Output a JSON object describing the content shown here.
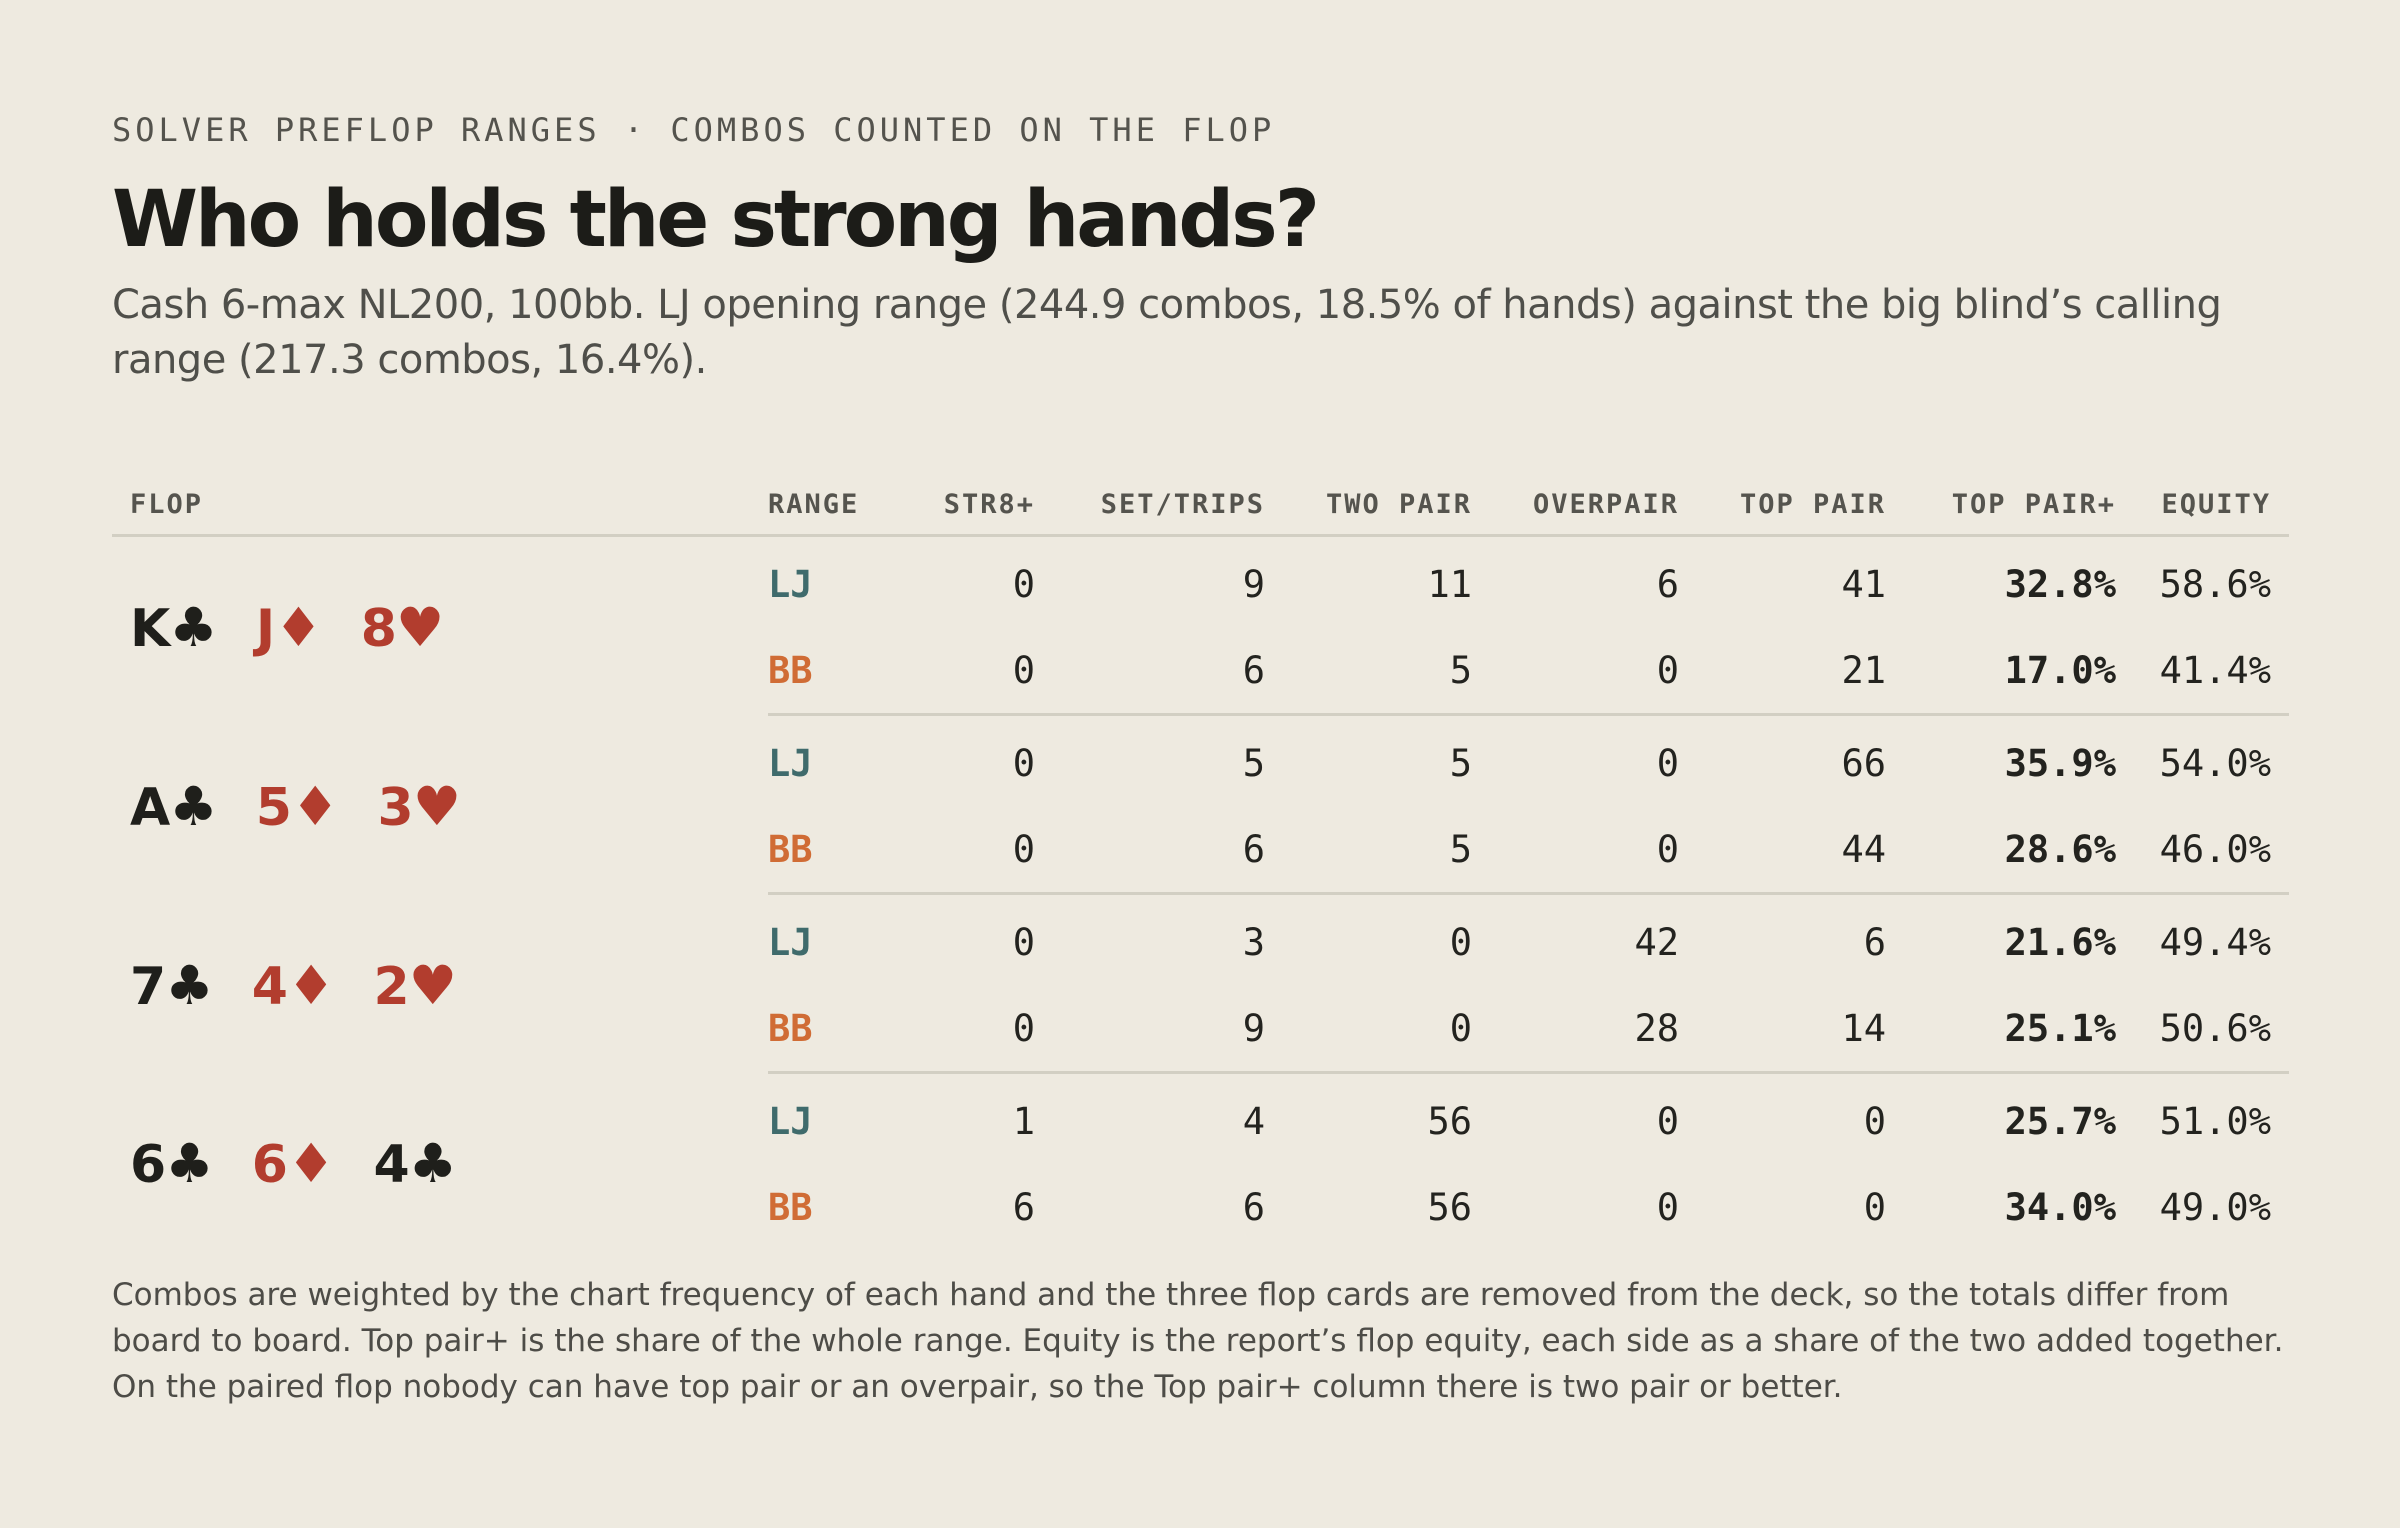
{
  "header": {
    "kicker": "SOLVER PREFLOP RANGES · COMBOS COUNTED ON THE FLOP",
    "title": "Who holds the strong hands?",
    "subtitle": "Cash 6-max NL200, 100bb. LJ opening range (244.9 combos, 18.5% of hands) against the big blind’s calling range (217.3 combos, 16.4%)."
  },
  "table": {
    "columns": [
      "FLOP",
      "RANGE",
      "STR8+",
      "SET/TRIPS",
      "TWO PAIR",
      "OVERPAIR",
      "TOP PAIR",
      "TOP PAIR+",
      "EQUITY"
    ],
    "flops": [
      {
        "cards": [
          {
            "rank": "K",
            "suit": "♣",
            "color": "black"
          },
          {
            "rank": "J",
            "suit": "♦",
            "color": "red"
          },
          {
            "rank": "8",
            "suit": "♥",
            "color": "red"
          }
        ],
        "rows": [
          {
            "range": "LJ",
            "str8": "0",
            "set": "9",
            "two_pair": "11",
            "overpair": "6",
            "top_pair": "41",
            "top_pair_plus": "32.8%",
            "equity": "58.6%"
          },
          {
            "range": "BB",
            "str8": "0",
            "set": "6",
            "two_pair": "5",
            "overpair": "0",
            "top_pair": "21",
            "top_pair_plus": "17.0%",
            "equity": "41.4%"
          }
        ]
      },
      {
        "cards": [
          {
            "rank": "A",
            "suit": "♣",
            "color": "black"
          },
          {
            "rank": "5",
            "suit": "♦",
            "color": "red"
          },
          {
            "rank": "3",
            "suit": "♥",
            "color": "red"
          }
        ],
        "rows": [
          {
            "range": "LJ",
            "str8": "0",
            "set": "5",
            "two_pair": "5",
            "overpair": "0",
            "top_pair": "66",
            "top_pair_plus": "35.9%",
            "equity": "54.0%"
          },
          {
            "range": "BB",
            "str8": "0",
            "set": "6",
            "two_pair": "5",
            "overpair": "0",
            "top_pair": "44",
            "top_pair_plus": "28.6%",
            "equity": "46.0%"
          }
        ]
      },
      {
        "cards": [
          {
            "rank": "7",
            "suit": "♣",
            "color": "black"
          },
          {
            "rank": "4",
            "suit": "♦",
            "color": "red"
          },
          {
            "rank": "2",
            "suit": "♥",
            "color": "red"
          }
        ],
        "rows": [
          {
            "range": "LJ",
            "str8": "0",
            "set": "3",
            "two_pair": "0",
            "overpair": "42",
            "top_pair": "6",
            "top_pair_plus": "21.6%",
            "equity": "49.4%"
          },
          {
            "range": "BB",
            "str8": "0",
            "set": "9",
            "two_pair": "0",
            "overpair": "28",
            "top_pair": "14",
            "top_pair_plus": "25.1%",
            "equity": "50.6%"
          }
        ]
      },
      {
        "cards": [
          {
            "rank": "6",
            "suit": "♣",
            "color": "black"
          },
          {
            "rank": "6",
            "suit": "♦",
            "color": "red"
          },
          {
            "rank": "4",
            "suit": "♣",
            "color": "black"
          }
        ],
        "rows": [
          {
            "range": "LJ",
            "str8": "1",
            "set": "4",
            "two_pair": "56",
            "overpair": "0",
            "top_pair": "0",
            "top_pair_plus": "25.7%",
            "equity": "51.0%"
          },
          {
            "range": "BB",
            "str8": "6",
            "set": "6",
            "two_pair": "56",
            "overpair": "0",
            "top_pair": "0",
            "top_pair_plus": "34.0%",
            "equity": "49.0%"
          }
        ]
      }
    ]
  },
  "footnote": "Combos are weighted by the chart frequency of each hand and the three flop cards are removed from the deck, so the totals differ from board to board. Top pair+ is the share of the whole range. Equity is the report’s flop equity, each side as a share of the two added together. On the paired flop nobody can have top pair or an overpair, so the Top pair+ column there is two pair or better.",
  "colors": {
    "background": "#eeeae0",
    "lj": "#3f6b6c",
    "bb": "#d06c35",
    "red_suit": "#b23d2e",
    "black_suit": "#1f1f1b"
  }
}
